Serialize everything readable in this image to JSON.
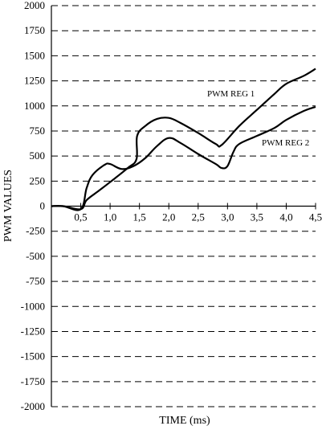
{
  "chart_data": {
    "type": "line",
    "title": "",
    "xlabel": "TIME (ms)",
    "ylabel": "PWM VALUES",
    "xlim": [
      0,
      4.5
    ],
    "ylim": [
      -2000,
      2000
    ],
    "grid": "horizontal dashed",
    "legend": "inline labels",
    "yticks": [
      2000,
      1750,
      1500,
      1250,
      1000,
      750,
      500,
      250,
      0,
      -250,
      -500,
      -750,
      -1000,
      -1250,
      -1500,
      -1750,
      -2000
    ],
    "xticks": [
      0.5,
      1.0,
      1.5,
      2.0,
      2.5,
      3.0,
      3.5,
      4.0,
      4.5
    ],
    "xtick_labels": [
      "0,5",
      "1,0",
      "1,5",
      "2,0",
      "2,5",
      "3,0",
      "3,5",
      "4,0",
      "4,5"
    ],
    "series": [
      {
        "name": "PWM REG 1",
        "x": [
          0.0,
          0.2,
          0.5,
          0.6,
          0.8,
          1.0,
          1.3,
          1.45,
          1.46,
          1.6,
          1.8,
          2.0,
          2.2,
          2.5,
          2.8,
          2.9,
          3.2,
          3.5,
          3.8,
          4.0,
          4.3,
          4.5
        ],
        "y": [
          0,
          0,
          -30,
          60,
          150,
          240,
          380,
          470,
          700,
          800,
          870,
          880,
          830,
          730,
          620,
          610,
          800,
          960,
          1120,
          1220,
          1300,
          1370
        ]
      },
      {
        "name": "PWM REG 2",
        "x": [
          0.0,
          0.2,
          0.5,
          0.6,
          0.7,
          0.9,
          1.0,
          1.2,
          1.4,
          1.6,
          1.8,
          2.0,
          2.2,
          2.5,
          2.8,
          2.9,
          3.0,
          3.1,
          3.2,
          3.5,
          3.8,
          4.0,
          4.3,
          4.5
        ],
        "y": [
          0,
          0,
          -30,
          180,
          310,
          410,
          420,
          370,
          400,
          480,
          600,
          680,
          630,
          520,
          420,
          380,
          400,
          540,
          620,
          700,
          780,
          860,
          950,
          990
        ]
      }
    ]
  }
}
